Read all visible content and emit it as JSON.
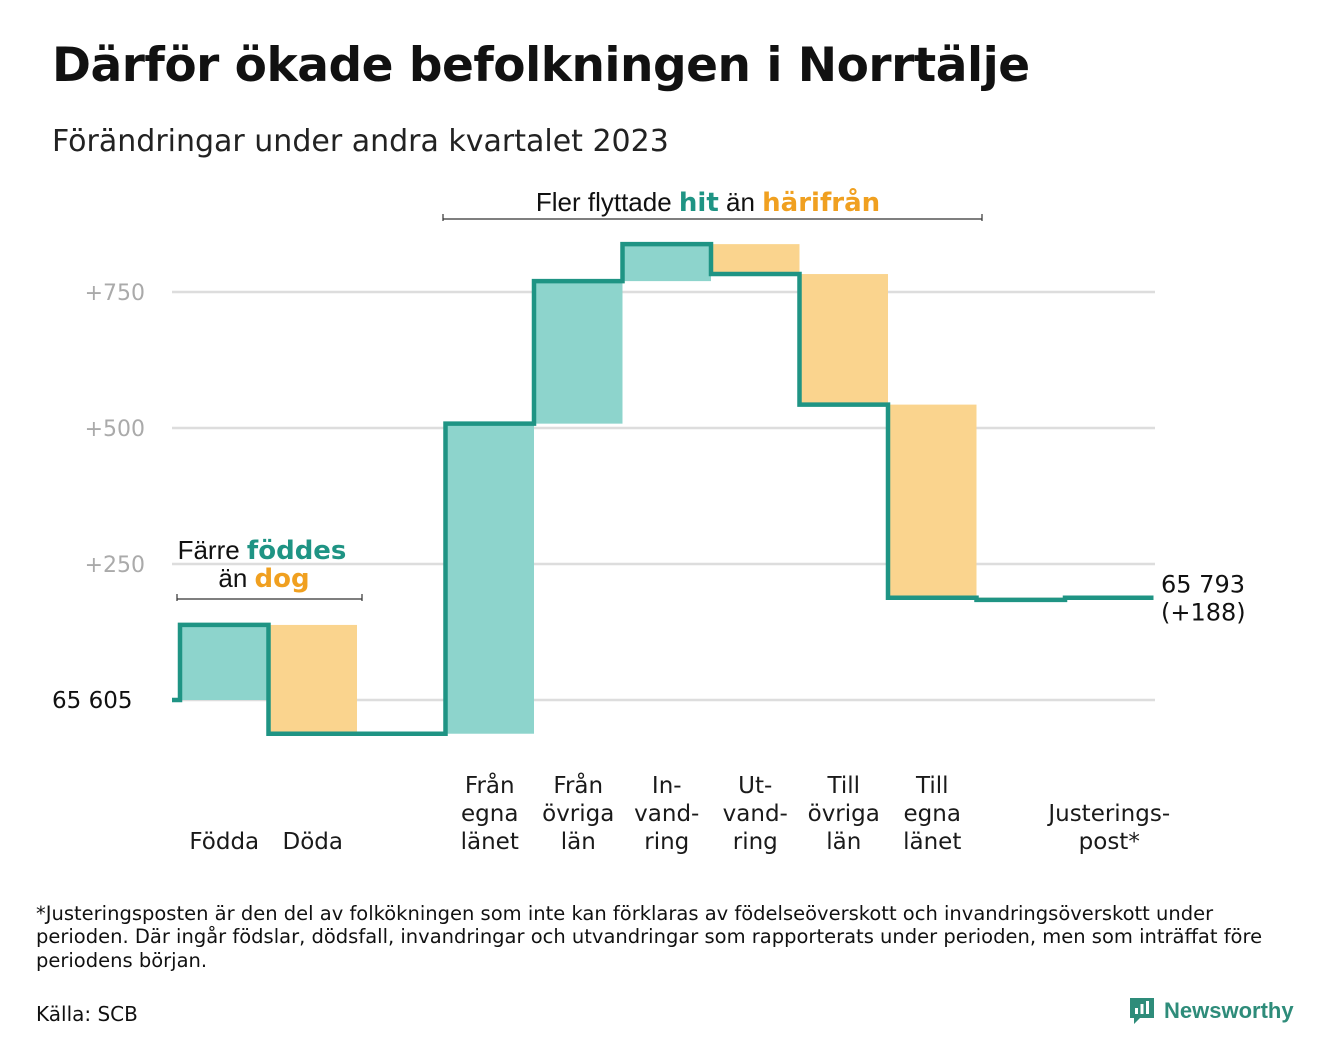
{
  "title": "Därför ökade befolkningen i Norrtälje",
  "subtitle": "Förändringar under andra kvartalet 2023",
  "colors": {
    "increase_fill": "#8dd4cc",
    "decrease_fill": "#fad48e",
    "line": "#1f9484",
    "teal_text": "#1f9484",
    "orange_text": "#f0a020",
    "grid": "#dddddd",
    "tick_text": "#aaaaaa"
  },
  "annotations": {
    "births": {
      "line1_prefix": "Färre",
      "line1_accent": "föddes",
      "line2_prefix": "än",
      "line2_accent": "dog"
    },
    "migration": {
      "prefix": "Fler flyttade",
      "accent1": "hit",
      "middle": "än",
      "accent2": "härifrån"
    }
  },
  "chart_data": {
    "type": "waterfall",
    "start_label": "65 605",
    "start_value": 65605,
    "end_label_line1": "65 793",
    "end_label_line2": "(+188)",
    "end_value": 65793,
    "yticks": [
      {
        "value": 250,
        "label": "+250"
      },
      {
        "value": 500,
        "label": "+500"
      },
      {
        "value": 750,
        "label": "+750"
      }
    ],
    "ylim": [
      -65,
      850
    ],
    "categories": [
      {
        "label_lines": [
          "Födda"
        ],
        "change": 138
      },
      {
        "label_lines": [
          "Döda"
        ],
        "change": -200
      },
      {
        "label_lines": [],
        "change": 0
      },
      {
        "label_lines": [
          "Från",
          "egna",
          "länet"
        ],
        "change": 570
      },
      {
        "label_lines": [
          "Från",
          "övriga",
          "län"
        ],
        "change": 262
      },
      {
        "label_lines": [
          "In-",
          "vand-",
          "ring"
        ],
        "change": 68
      },
      {
        "label_lines": [
          "Ut-",
          "vand-",
          "ring"
        ],
        "change": -55
      },
      {
        "label_lines": [
          "Till",
          "övriga",
          "län"
        ],
        "change": -240
      },
      {
        "label_lines": [
          "Till",
          "egna",
          "länet"
        ],
        "change": -355
      },
      {
        "label_lines": [],
        "change": -4
      },
      {
        "label_lines": [
          "Justerings-",
          "post*"
        ],
        "change": 4
      }
    ]
  },
  "footnote": "*Justeringsposten är den del av folkökningen som inte kan förklaras av födelseöverskott och invandringsöverskott under perioden. Där ingår födslar, dödsfall, invandringar och utvandringar som rapporterats under perioden, men som inträffat före periodens början.",
  "source": "Källa: SCB",
  "brand": "Newsworthy"
}
